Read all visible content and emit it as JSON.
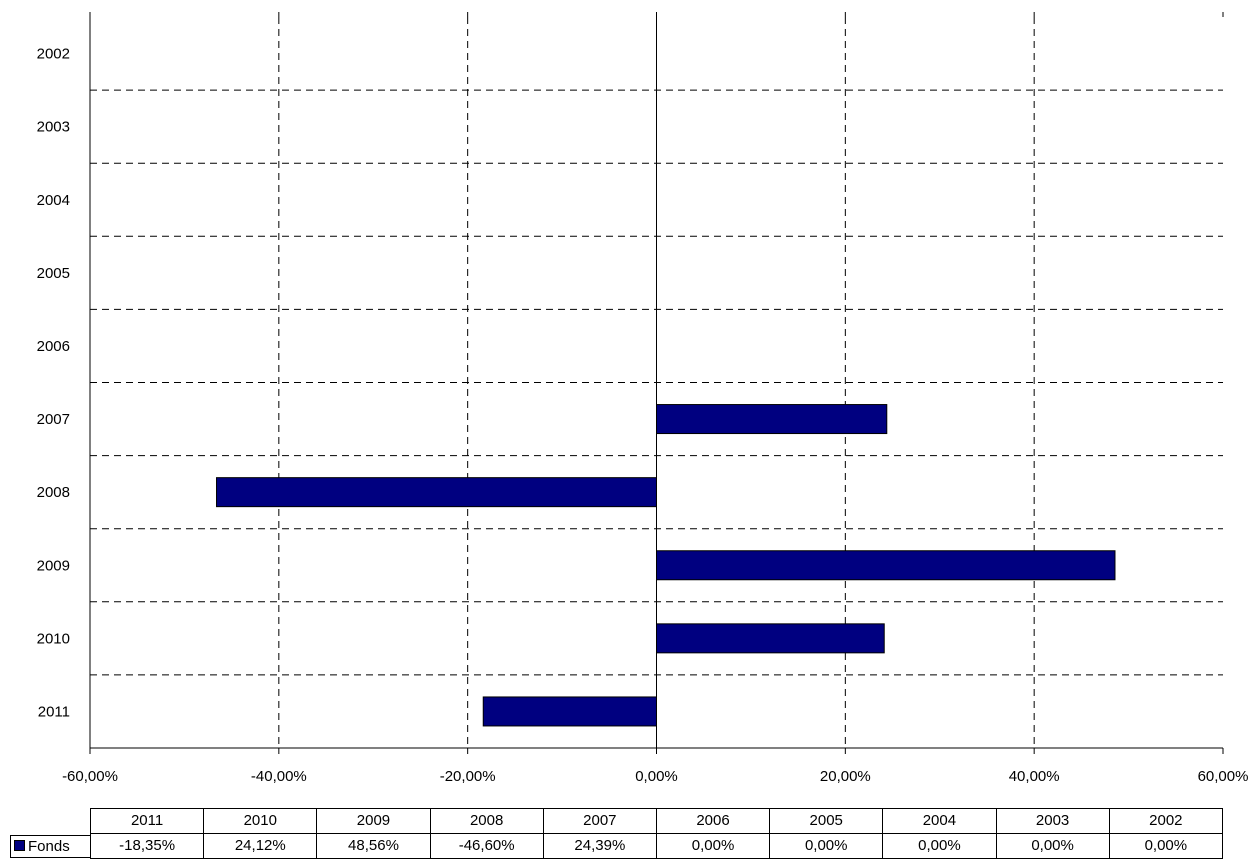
{
  "chart_data": {
    "type": "bar",
    "orientation": "horizontal",
    "categories": [
      "2002",
      "2003",
      "2004",
      "2005",
      "2006",
      "2007",
      "2008",
      "2009",
      "2010",
      "2011"
    ],
    "series": [
      {
        "name": "Fonds",
        "color": "#000080",
        "values": [
          0.0,
          0.0,
          0.0,
          0.0,
          0.0,
          24.39,
          -46.6,
          48.56,
          24.12,
          -18.35
        ]
      }
    ],
    "x_ticks": [
      "-60,00%",
      "-40,00%",
      "-20,00%",
      "0,00%",
      "20,00%",
      "40,00%",
      "60,00%"
    ],
    "xlim": [
      -60,
      60
    ],
    "grid": true,
    "table": {
      "headers": [
        "2011",
        "2010",
        "2009",
        "2008",
        "2007",
        "2006",
        "2005",
        "2004",
        "2003",
        "2002"
      ],
      "row_label": "Fonds",
      "values": [
        "-18,35%",
        "24,12%",
        "48,56%",
        "-46,60%",
        "24,39%",
        "0,00%",
        "0,00%",
        "0,00%",
        "0,00%",
        "0,00%"
      ]
    }
  }
}
